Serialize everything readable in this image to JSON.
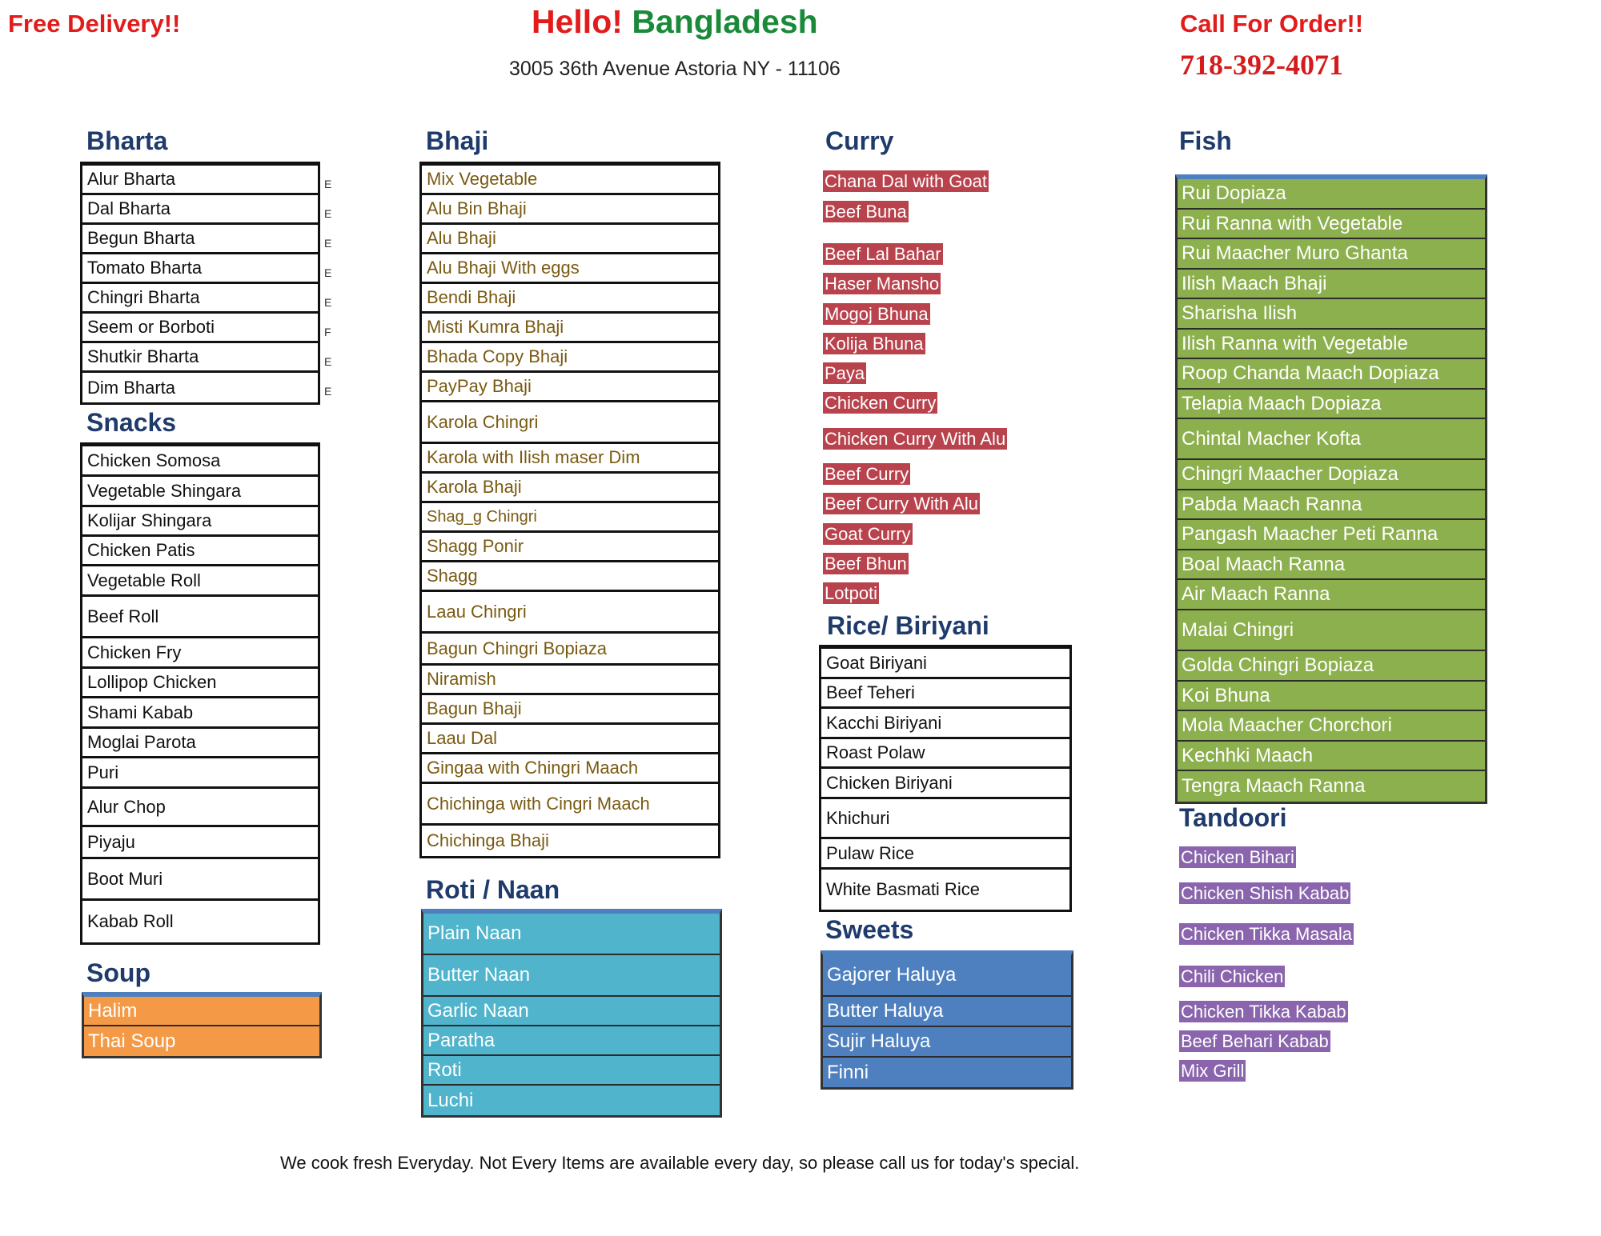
{
  "header": {
    "free_delivery": "Free Delivery!!",
    "title_hello": "Hello!",
    "title_country": "Bangladesh",
    "address": "3005 36th Avenue Astoria NY - 11106",
    "call_label": "Call For Order!!",
    "phone": "718-392-4071"
  },
  "colors": {
    "red": "#e21b1b",
    "green": "#1a8a3a",
    "heading_blue": "#1f3b6b",
    "soup_orange": "#f49a47",
    "naan_teal": "#4fb4cc",
    "sweets_blue": "#4e80c0",
    "fish_green": "#8db04e",
    "curry_red": "#b8434d",
    "tandoori_purple": "#8a65ad"
  },
  "bharta": {
    "heading": "Bharta",
    "items": [
      "Alur Bharta",
      "Dal Bharta",
      "Begun Bharta",
      "Tomato Bharta",
      "Chingri Bharta",
      "Seem or Borboti",
      "Shutkir Bharta",
      "Dim Bharta"
    ],
    "marks": [
      "E",
      "E",
      "E",
      "E",
      "E",
      "F",
      "E",
      "E"
    ]
  },
  "snacks": {
    "heading": "Snacks",
    "items": [
      "Chicken Somosa",
      "Vegetable Shingara",
      "Kolijar Shingara",
      "Chicken Patis",
      "Vegetable Roll",
      "Beef Roll",
      "Chicken Fry",
      "Lollipop Chicken",
      "Shami Kabab",
      "Moglai Parota",
      "Puri",
      "Alur Chop",
      "Piyaju",
      "Boot Muri",
      "Kabab Roll"
    ]
  },
  "soup": {
    "heading": "Soup",
    "items": [
      "Halim",
      "Thai Soup"
    ]
  },
  "bhaji": {
    "heading": "Bhaji",
    "items": [
      "Mix  Vegetable",
      "Alu Bin Bhaji",
      "Alu Bhaji",
      "Alu Bhaji With eggs",
      "Bendi Bhaji",
      "Misti  Kumra Bhaji",
      "Bhada  Copy  Bhaji",
      "PayPay Bhaji",
      "Karola Chingri",
      "Karola with Ilish maser Dim",
      "Karola Bhaji",
      "Shag_g Chingri",
      "Shagg Ponir",
      "Shagg",
      "Laau Chingri",
      "Bagun Chingri Bopiaza",
      "Niramish",
      "Bagun  Bhaji",
      "Laau Dal",
      "Gingaa with Chingri Maach",
      "Chichinga with Cingri Maach",
      "Chichinga  Bhaji"
    ]
  },
  "roti_naan": {
    "heading": "Roti /  Naan",
    "items": [
      "Plain Naan",
      "Butter Naan",
      "Garlic Naan",
      "Paratha",
      "Roti",
      "Luchi"
    ]
  },
  "curry": {
    "heading": "Curry",
    "items": [
      "Chana Dal with Goat",
      "Beef Buna",
      "Beef Lal Bahar",
      "Haser Mansho",
      "Mogoj Bhuna",
      "Kolija Bhuna",
      "Paya",
      "Chicken Curry",
      "Chicken Curry With Alu",
      "Beef Curry",
      "Beef Curry With Alu",
      "Goat Curry",
      "Beef Bhun",
      "Lotpoti"
    ]
  },
  "rice": {
    "heading": "Rice/  Biriyani",
    "items": [
      "Goat Biriyani",
      "Beef  Teheri",
      "Kacchi Biriyani",
      "Roast Polaw",
      "Chicken  Biriyani",
      "Khichuri",
      "Pulaw  Rice",
      "White  Basmati Rice"
    ]
  },
  "sweets": {
    "heading": "Sweets",
    "items": [
      "Gajorer Haluya",
      "Butter Haluya",
      "Sujir Haluya",
      "Finni"
    ]
  },
  "fish": {
    "heading": "Fish",
    "items": [
      "Rui Dopiaza",
      "Rui Ranna with Vegetable",
      "Rui Maacher Muro Ghanta",
      "Ilish Maach Bhaji",
      "Sharisha Ilish",
      "Ilish Ranna with Vegetable",
      "Roop Chanda Maach Dopiaza",
      "Telapia Maach Dopiaza",
      "Chintal Macher Kofta",
      "Chingri Maacher Dopiaza",
      "Pabda Maach Ranna",
      "Pangash Maacher Peti Ranna",
      "Boal Maach Ranna",
      "Air Maach Ranna",
      "Malai Chingri",
      "Golda Chingri Bopiaza",
      "Koi Bhuna",
      "Mola Maacher Chorchori",
      "Kechhki Maach",
      "Tengra Maach Ranna"
    ]
  },
  "tandoori": {
    "heading": "Tandoori",
    "items": [
      "Chicken Bihari",
      "Chicken  Shish  Kabab",
      "Chicken Tikka Masala",
      "Chili Chicken",
      "Chicken Tikka Kabab",
      "Beef Behari Kabab",
      "Mix  Grill"
    ]
  },
  "footer": {
    "note": "We cook fresh Everyday.  Not  Every Items are available every day, so please call us for  today's special."
  }
}
